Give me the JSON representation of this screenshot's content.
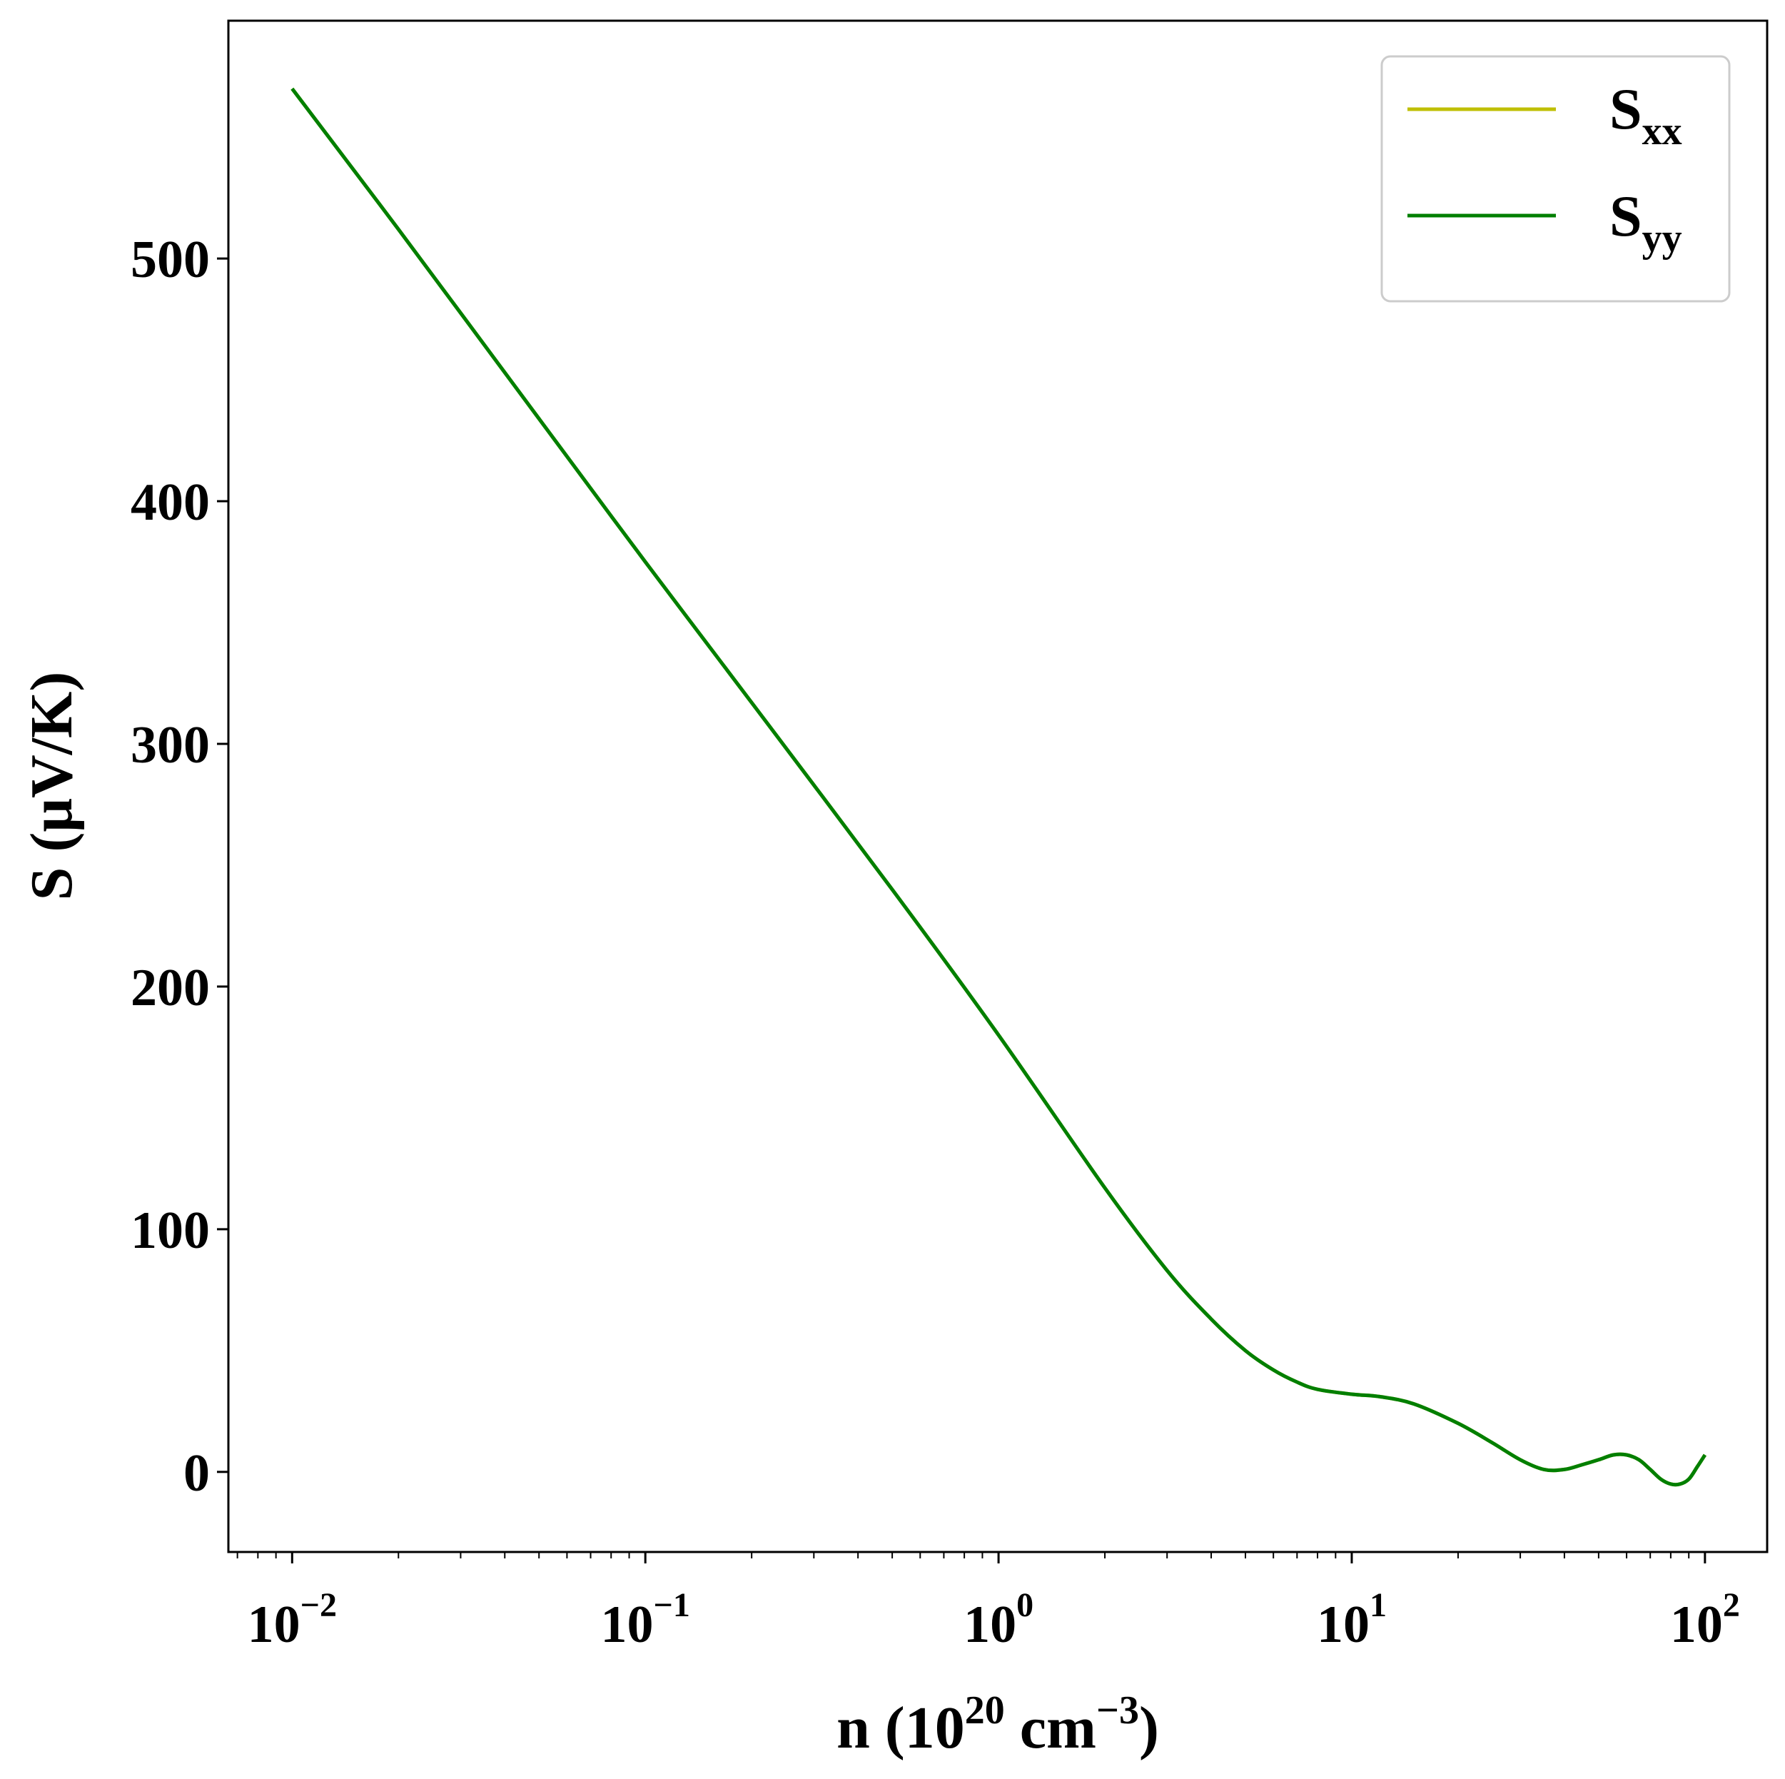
{
  "chart_data": {
    "type": "line",
    "xscale": "log",
    "xlim": [
      0.0066,
      150
    ],
    "ylim": [
      -33,
      598
    ],
    "xticks": [
      {
        "value": 0.01,
        "base": "10",
        "exp": "−2"
      },
      {
        "value": 0.1,
        "base": "10",
        "exp": "−1"
      },
      {
        "value": 1,
        "base": "10",
        "exp": "0"
      },
      {
        "value": 10,
        "base": "10",
        "exp": "1"
      },
      {
        "value": 100,
        "base": "10",
        "exp": "2"
      }
    ],
    "yticks": [
      0,
      100,
      200,
      300,
      400,
      500
    ],
    "yticklabels": [
      "0",
      "100",
      "200",
      "300",
      "400",
      "500"
    ],
    "xlabel": {
      "prefix": "n (10",
      "sup1": "20",
      "mid": " cm",
      "sup2": "−3",
      "suffix": ")"
    },
    "ylabel": "S (μV/K)",
    "grid": false,
    "legend": {
      "placement": "top-right"
    },
    "series": [
      {
        "name": "S_xx",
        "label_main": "S",
        "label_sub": "xx",
        "color": "#bfbf00",
        "x": [
          0.01,
          0.02,
          0.05,
          0.1,
          0.2,
          0.5,
          1,
          2,
          3,
          4,
          5,
          6,
          7,
          8,
          10,
          12,
          15,
          20,
          25,
          30,
          35,
          40,
          45,
          50,
          55,
          60,
          65,
          70,
          75,
          80,
          85,
          90,
          95,
          100
        ],
        "y": [
          570,
          512,
          434,
          375,
          317,
          240,
          180,
          117,
          83,
          63,
          50,
          42,
          37,
          34,
          32,
          31,
          28,
          20,
          12,
          5,
          1,
          1,
          3,
          5,
          7,
          7,
          5,
          1,
          -3,
          -5,
          -5,
          -3,
          2,
          7
        ]
      },
      {
        "name": "S_yy",
        "label_main": "S",
        "label_sub": "yy",
        "color": "#007f00",
        "x": [
          0.01,
          0.02,
          0.05,
          0.1,
          0.2,
          0.5,
          1,
          2,
          3,
          4,
          5,
          6,
          7,
          8,
          10,
          12,
          15,
          20,
          25,
          30,
          35,
          40,
          45,
          50,
          55,
          60,
          65,
          70,
          75,
          80,
          85,
          90,
          95,
          100
        ],
        "y": [
          570,
          512,
          434,
          375,
          317,
          240,
          180,
          117,
          83,
          63,
          50,
          42,
          37,
          34,
          32,
          31,
          28,
          20,
          12,
          5,
          1,
          1,
          3,
          5,
          7,
          7,
          5,
          1,
          -3,
          -5,
          -5,
          -3,
          2,
          7
        ]
      }
    ]
  }
}
